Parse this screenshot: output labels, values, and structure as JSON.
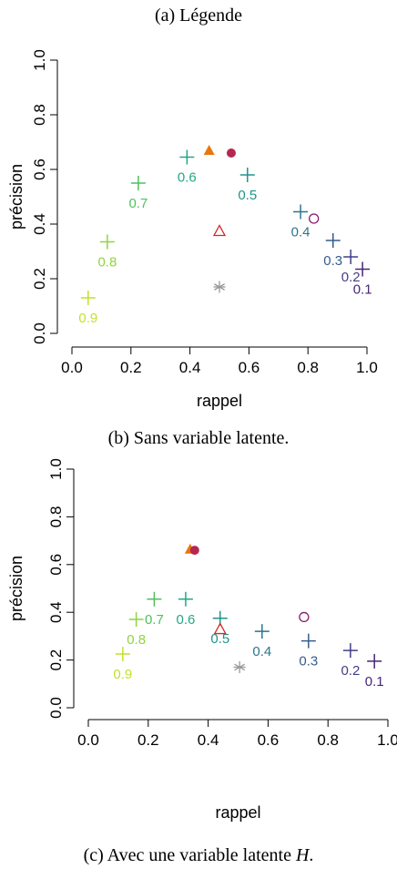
{
  "captions": {
    "top": "(a) Légende",
    "middle": "(b) Sans variable latente.",
    "bottom_prefix": "(c) Avec une variable latente ",
    "bottom_var": "H",
    "bottom_suffix": "."
  },
  "chart_data": [
    {
      "type": "scatter",
      "xlabel": "rappel",
      "ylabel": "précision",
      "xlim": [
        0,
        1
      ],
      "ylim": [
        0,
        1
      ],
      "xticks": [
        "0.0",
        "0.2",
        "0.4",
        "0.6",
        "0.8",
        "1.0"
      ],
      "yticks": [
        "0.0",
        "0.2",
        "0.4",
        "0.6",
        "0.8",
        "1.0"
      ],
      "grid": false,
      "threshold_points": [
        {
          "label": "0.9",
          "x": 0.055,
          "y": 0.13,
          "color": "#c6df2b"
        },
        {
          "label": "0.8",
          "x": 0.12,
          "y": 0.335,
          "color": "#8fd440"
        },
        {
          "label": "0.7",
          "x": 0.225,
          "y": 0.55,
          "color": "#4fc15e"
        },
        {
          "label": "0.6",
          "x": 0.39,
          "y": 0.645,
          "color": "#23a884"
        },
        {
          "label": "0.5",
          "x": 0.595,
          "y": 0.58,
          "color": "#20938c"
        },
        {
          "label": "0.4",
          "x": 0.775,
          "y": 0.445,
          "color": "#2c758e"
        },
        {
          "label": "0.3",
          "x": 0.885,
          "y": 0.34,
          "color": "#365c8d"
        },
        {
          "label": "0.2",
          "x": 0.945,
          "y": 0.28,
          "color": "#433e85"
        },
        {
          "label": "0.1",
          "x": 0.985,
          "y": 0.235,
          "color": "#482576"
        }
      ],
      "special_points": [
        {
          "symbol": "filled-triangle",
          "x": 0.465,
          "y": 0.67,
          "color": "#e8770e"
        },
        {
          "symbol": "filled-circle",
          "x": 0.54,
          "y": 0.66,
          "color": "#b5274f"
        },
        {
          "symbol": "open-triangle",
          "x": 0.5,
          "y": 0.375,
          "color": "#d62728"
        },
        {
          "symbol": "open-circle",
          "x": 0.82,
          "y": 0.42,
          "color": "#8b1a6b"
        },
        {
          "symbol": "asterisk",
          "x": 0.5,
          "y": 0.17,
          "color": "#999999"
        }
      ]
    },
    {
      "type": "scatter",
      "xlabel": "rappel",
      "ylabel": "précision",
      "xlim": [
        0,
        1
      ],
      "ylim": [
        0,
        1
      ],
      "xticks": [
        "0.0",
        "0.2",
        "0.4",
        "0.6",
        "0.8",
        "1.0"
      ],
      "yticks": [
        "0.0",
        "0.2",
        "0.4",
        "0.6",
        "0.8",
        "1.0"
      ],
      "grid": false,
      "threshold_points": [
        {
          "label": "0.9",
          "x": 0.115,
          "y": 0.225,
          "color": "#c6df2b"
        },
        {
          "label": "0.8",
          "x": 0.16,
          "y": 0.37,
          "color": "#8fd440"
        },
        {
          "label": "0.7",
          "x": 0.22,
          "y": 0.455,
          "color": "#4fc15e"
        },
        {
          "label": "0.6",
          "x": 0.325,
          "y": 0.455,
          "color": "#23a884"
        },
        {
          "label": "0.5",
          "x": 0.44,
          "y": 0.375,
          "color": "#20938c"
        },
        {
          "label": "0.4",
          "x": 0.58,
          "y": 0.32,
          "color": "#2c758e"
        },
        {
          "label": "0.3",
          "x": 0.735,
          "y": 0.28,
          "color": "#365c8d"
        },
        {
          "label": "0.2",
          "x": 0.875,
          "y": 0.24,
          "color": "#433e85"
        },
        {
          "label": "0.1",
          "x": 0.955,
          "y": 0.195,
          "color": "#482576"
        }
      ],
      "special_points": [
        {
          "symbol": "filled-triangle",
          "x": 0.34,
          "y": 0.665,
          "color": "#e8770e"
        },
        {
          "symbol": "filled-circle",
          "x": 0.355,
          "y": 0.66,
          "color": "#b5274f"
        },
        {
          "symbol": "open-triangle",
          "x": 0.44,
          "y": 0.33,
          "color": "#d62728"
        },
        {
          "symbol": "open-circle",
          "x": 0.72,
          "y": 0.38,
          "color": "#8b1a6b"
        },
        {
          "symbol": "asterisk",
          "x": 0.505,
          "y": 0.17,
          "color": "#999999"
        }
      ]
    }
  ]
}
